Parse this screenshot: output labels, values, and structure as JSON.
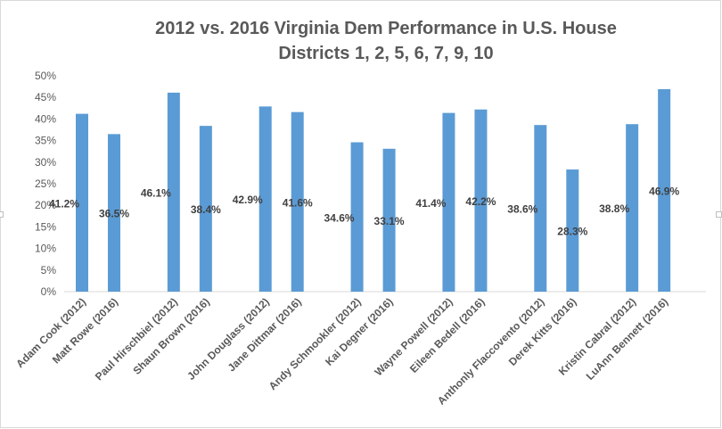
{
  "chart_data": {
    "type": "bar",
    "title_lines": [
      "2012 vs. 2016 Virginia Dem Performance in U.S. House",
      "Districts 1, 2, 5, 6, 7, 9, 10"
    ],
    "xlabel": "",
    "ylabel": "",
    "ylim": [
      0,
      50
    ],
    "yticks": [
      "0%",
      "5%",
      "10%",
      "15%",
      "20%",
      "25%",
      "30%",
      "35%",
      "40%",
      "45%",
      "50%"
    ],
    "grid": false,
    "legend": "none",
    "bar_color": "#5b9bd5",
    "categories": [
      "Adam Cook (2012)",
      "Matt Rowe (2016)",
      "Paul Hirschbiel (2012)",
      "Shaun Brown (2016)",
      "John Douglass (2012)",
      "Jane Dittmar  (2016)",
      "Andy Schmookler (2012)",
      "Kai Degner  (2016)",
      "Wayne Powell (2012)",
      "Eileen Bedell  (2016)",
      "Anthonly Flaccovento (2012)",
      "Derek Kitts  (2016)",
      "Kristin Cabral (2012)",
      "LuAnn Bennett  (2016)"
    ],
    "values": [
      41.2,
      36.5,
      46.1,
      38.4,
      42.9,
      41.6,
      34.6,
      33.1,
      41.4,
      42.2,
      38.6,
      28.3,
      38.8,
      46.9
    ],
    "data_labels": [
      "41.2%",
      "36.5%",
      "46.1%",
      "38.4%",
      "42.9%",
      "41.6%",
      "34.6%",
      "33.1%",
      "41.4%",
      "42.2%",
      "38.6%",
      "28.3%",
      "38.8%",
      "46.9%"
    ]
  }
}
